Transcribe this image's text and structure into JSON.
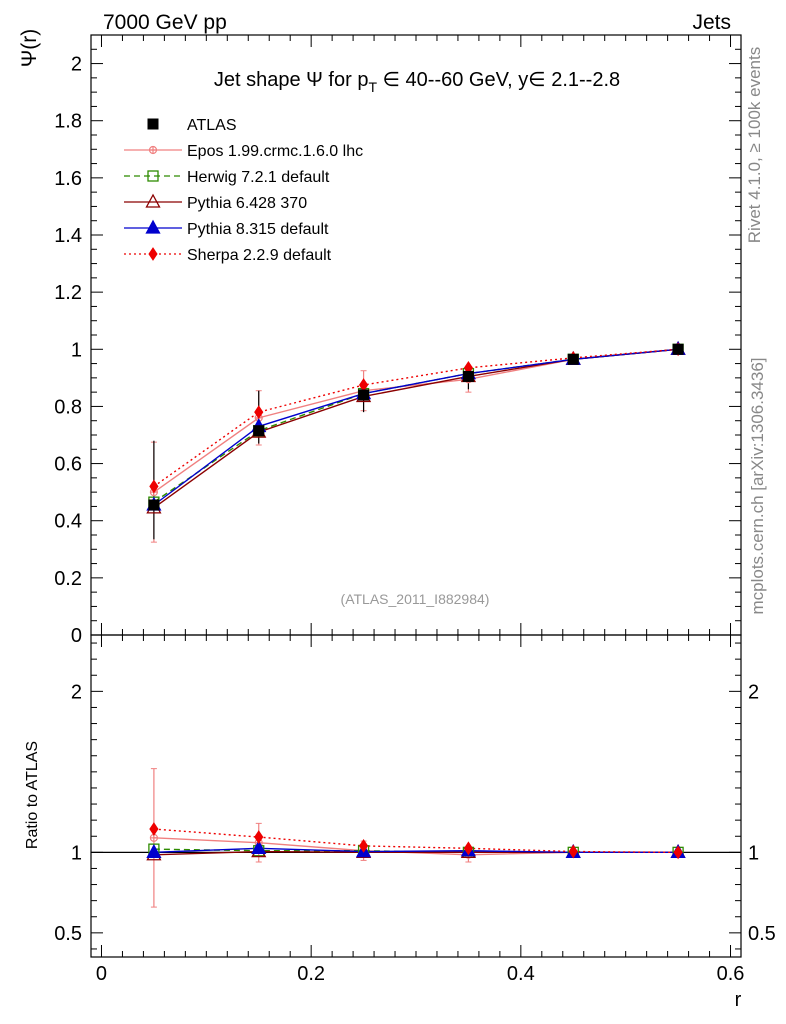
{
  "header": {
    "left": "7000 GeV pp",
    "right": "Jets"
  },
  "side_text": {
    "rivet": "Rivet 4.1.0, ≥ 100k events",
    "mcplots": "mcplots.cern.ch [arXiv:1306.3436]"
  },
  "chart_data": {
    "type": "line",
    "title": "Jet shape Ψ for p_T ∈ 40--60 GeV, y∈ 2.1--2.8",
    "title_parts": {
      "pre": "Jet shape Ψ for p",
      "sub": "T",
      "post": " ∈ 40--60 GeV, y∈ 2.1--2.8"
    },
    "analysis_tag": "(ATLAS_2011_I882984)",
    "xlabel": "r",
    "ylabel_main": "Ψ(r)",
    "ylabel_ratio": "Ratio to ATLAS",
    "xlim": [
      -0.01,
      0.61
    ],
    "ylim_main": [
      0,
      2.1
    ],
    "ylim_ratio": [
      0.35,
      2.35
    ],
    "x_ticks": [
      0,
      0.2,
      0.4,
      0.6
    ],
    "x_tick_labels": [
      "0",
      "0.2",
      "0.4",
      "0.6"
    ],
    "y_ticks_main": [
      0,
      0.2,
      0.4,
      0.6,
      0.8,
      1,
      1.2,
      1.4,
      1.6,
      1.8,
      2
    ],
    "y_tick_labels_main": [
      "0",
      "0.2",
      "0.4",
      "0.6",
      "0.8",
      "1",
      "1.2",
      "1.4",
      "1.6",
      "1.8",
      "2"
    ],
    "y_ticks_ratio": [
      0.5,
      1,
      2
    ],
    "y_tick_labels_ratio": [
      "0.5",
      "1",
      "2"
    ],
    "x": [
      0.05,
      0.15,
      0.25,
      0.35,
      0.45,
      0.55
    ],
    "data": {
      "name": "ATLAS",
      "values": [
        0.455,
        0.715,
        0.84,
        0.905,
        0.965,
        1.0
      ],
      "err_low": [
        0.12,
        0.045,
        0.06,
        0.045,
        0.012,
        0.0
      ],
      "err_high": [
        0.225,
        0.14,
        0.045,
        0.04,
        0.012,
        0.0
      ]
    },
    "series": [
      {
        "name": "Epos 1.99.crmc.1.6.0 lhc",
        "color": "#f08080",
        "dash": "solid",
        "marker": "cross",
        "values": [
          0.5,
          0.76,
          0.855,
          0.895,
          0.965,
          1.0
        ],
        "err": [
          0.175,
          0.095,
          0.07,
          0.045,
          0.012,
          0.0
        ],
        "ratio": [
          1.09,
          1.06,
          1.01,
          0.985,
          1.0,
          1.0
        ],
        "ratio_err": [
          0.43,
          0.12,
          0.06,
          0.045,
          0.012,
          0.0
        ]
      },
      {
        "name": "Herwig 7.2.1 default",
        "color": "#2e8b00",
        "dash": "6,4",
        "marker": "square-open",
        "values": [
          0.465,
          0.715,
          0.845,
          0.915,
          0.965,
          1.0
        ],
        "ratio": [
          1.02,
          1.01,
          1.01,
          1.0,
          1.0,
          1.0
        ]
      },
      {
        "name": "Pythia 6.428 370",
        "color": "#8b0000",
        "dash": "solid",
        "marker": "triangle-open",
        "values": [
          0.445,
          0.71,
          0.835,
          0.905,
          0.965,
          1.0
        ],
        "ratio": [
          0.985,
          1.005,
          1.0,
          1.0,
          1.0,
          1.0
        ]
      },
      {
        "name": "Pythia 8.315 default",
        "color": "#0000cd",
        "dash": "solid",
        "marker": "triangle",
        "values": [
          0.455,
          0.73,
          0.845,
          0.915,
          0.965,
          1.0
        ],
        "ratio": [
          1.0,
          1.025,
          1.005,
          1.01,
          1.0,
          1.0
        ]
      },
      {
        "name": "Sherpa 2.2.9 default",
        "color": "#ee0000",
        "dash": "2,3",
        "marker": "diamond",
        "values": [
          0.52,
          0.78,
          0.875,
          0.935,
          0.97,
          1.0
        ],
        "ratio": [
          1.145,
          1.095,
          1.04,
          1.025,
          1.005,
          1.0
        ]
      }
    ]
  }
}
